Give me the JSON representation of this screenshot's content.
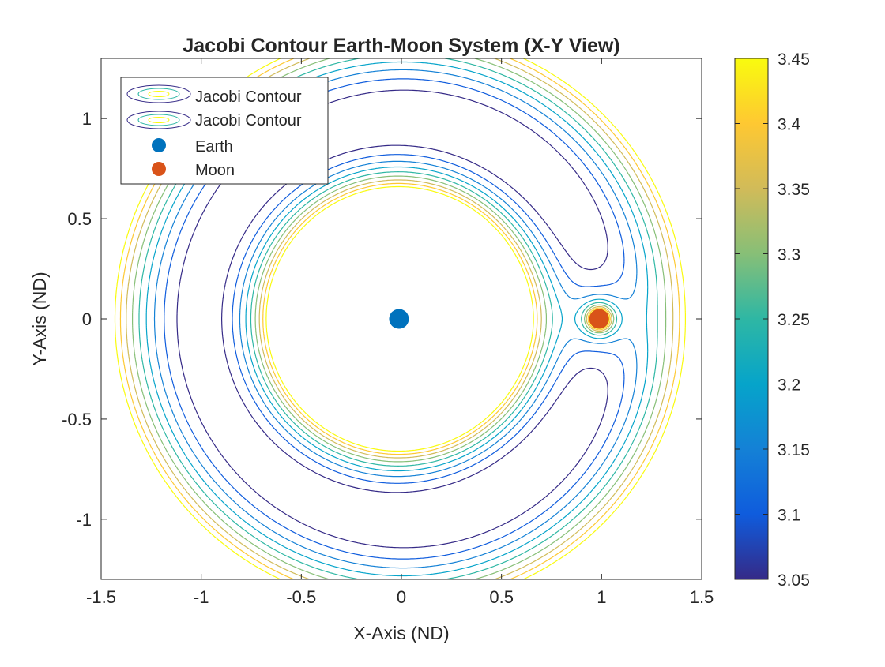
{
  "chart_data": {
    "type": "contour",
    "title": "Jacobi Contour Earth-Moon System (X-Y View)",
    "xlabel": "X-Axis (ND)",
    "ylabel": "Y-Axis (ND)",
    "xlim": [
      -1.5,
      1.5
    ],
    "ylim": [
      -1.3,
      1.3
    ],
    "xticks": [
      -1.5,
      -1,
      -0.5,
      0,
      0.5,
      1,
      1.5
    ],
    "xtick_labels": [
      "-1.5",
      "-1",
      "-0.5",
      "0",
      "0.5",
      "1",
      "1.5"
    ],
    "yticks": [
      -1,
      -0.5,
      0,
      0.5,
      1
    ],
    "ytick_labels": [
      "-1",
      "-0.5",
      "0",
      "0.5",
      "1"
    ],
    "mu": 0.01215,
    "contour_levels": [
      3.05,
      3.1,
      3.15,
      3.2,
      3.25,
      3.3,
      3.35,
      3.4,
      3.45
    ],
    "colorbar": {
      "range": [
        3.05,
        3.45
      ],
      "ticks": [
        3.05,
        3.1,
        3.15,
        3.2,
        3.25,
        3.3,
        3.35,
        3.4,
        3.45
      ],
      "tick_labels": [
        "3.05",
        "3.1",
        "3.15",
        "3.2",
        "3.25",
        "3.3",
        "3.35",
        "3.4",
        "3.45"
      ],
      "colormap": "parula"
    },
    "bodies": [
      {
        "name": "Earth",
        "x": -0.01215,
        "y": 0,
        "color": "#0072BD"
      },
      {
        "name": "Moon",
        "x": 0.98785,
        "y": 0,
        "color": "#D95319"
      }
    ],
    "legend": {
      "location": "northwest",
      "entries": [
        "Jacobi Contour",
        "Jacobi Contour",
        "Earth",
        "Moon"
      ]
    },
    "grid": false
  }
}
